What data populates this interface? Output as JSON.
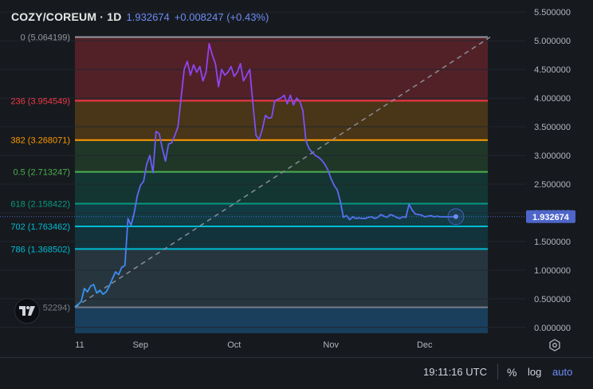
{
  "header": {
    "symbol": "COZY/COREUM · 1D",
    "last_price": "1.932674",
    "change": "+0.008247 (+0.43%)"
  },
  "footer": {
    "clock": "19:11:16 UTC",
    "percent_label": "%",
    "log_label": "log",
    "auto_label": "auto"
  },
  "colors": {
    "accent": "#6f8cf7",
    "background": "#161a1e"
  },
  "chart_data": {
    "type": "line",
    "ylim": [
      -0.1,
      5.6
    ],
    "y_ticks": [
      "5.500000",
      "5.000000",
      "4.500000",
      "4.000000",
      "3.500000",
      "3.000000",
      "2.500000",
      "2.000000",
      "1.500000",
      "1.000000",
      "0.500000",
      "0.000000"
    ],
    "y_tick_values": [
      5.5,
      5.0,
      4.5,
      4.0,
      3.5,
      3.0,
      2.5,
      2.0,
      1.5,
      1.0,
      0.5,
      0.0
    ],
    "x_ticks": [
      {
        "label": "11",
        "t": 0
      },
      {
        "label": "Sep",
        "t": 21
      },
      {
        "label": "Oct",
        "t": 51
      },
      {
        "label": "Nov",
        "t": 82
      },
      {
        "label": "Dec",
        "t": 112
      }
    ],
    "current_price_label": "1.932674",
    "current_price": 1.932674,
    "fib_levels": [
      {
        "label": "0 (5.064199)",
        "value": 5.064199,
        "color": "#9598a1"
      },
      {
        "label": "236 (3.954549)",
        "value": 3.954549,
        "color": "#f23645"
      },
      {
        "label": "382 (3.268071)",
        "value": 3.268071,
        "color": "#ff9800"
      },
      {
        "label": "0.5 (2.713247)",
        "value": 2.713247,
        "color": "#4caf50"
      },
      {
        "label": "618 (2.158422)",
        "value": 2.158422,
        "color": "#089981"
      },
      {
        "label": "702 (1.763462)",
        "value": 1.763462,
        "color": "#00bcd4"
      },
      {
        "label": "786 (1.368502)",
        "value": 1.368502,
        "color": "#00bcd4"
      },
      {
        "label": "52294)",
        "value": 0.352294,
        "color": "#787b86"
      }
    ],
    "fib_zones": [
      {
        "from": 5.064199,
        "to": 3.954549,
        "color": "rgba(242,54,69,0.28)"
      },
      {
        "from": 3.954549,
        "to": 3.268071,
        "color": "rgba(255,152,0,0.22)"
      },
      {
        "from": 3.268071,
        "to": 2.713247,
        "color": "rgba(76,175,80,0.20)"
      },
      {
        "from": 2.713247,
        "to": 2.158422,
        "color": "rgba(8,153,129,0.22)"
      },
      {
        "from": 2.158422,
        "to": 1.763462,
        "color": "rgba(0,188,212,0.20)"
      },
      {
        "from": 1.763462,
        "to": 1.368502,
        "color": "rgba(0,188,212,0.16)"
      },
      {
        "from": 1.368502,
        "to": 0.352294,
        "color": "rgba(90,140,160,0.25)"
      },
      {
        "from": 0.352294,
        "to": -0.1,
        "color": "rgba(33,150,243,0.30)"
      }
    ],
    "trend_line": {
      "t0": 0,
      "v0": 0.352294,
      "t1": 133,
      "v1": 5.064199
    },
    "series": [
      {
        "t": [
          0,
          1,
          2,
          3,
          4,
          5,
          6,
          7,
          8,
          9,
          10,
          11,
          12,
          13,
          14,
          15,
          16,
          17,
          18,
          19,
          20,
          21,
          22,
          23,
          24,
          25,
          26,
          27,
          28,
          29,
          30,
          31,
          32,
          33,
          34,
          35,
          36,
          37,
          38,
          39,
          40,
          41,
          42,
          43,
          44,
          45,
          46,
          47,
          48,
          49,
          50,
          51,
          52,
          53,
          54,
          55,
          56,
          57,
          58,
          59,
          60,
          61,
          62,
          63,
          64,
          65,
          66,
          67,
          68,
          69,
          70,
          71,
          72,
          73,
          74,
          75,
          76,
          77,
          78,
          79,
          80,
          81,
          82,
          83,
          84,
          85,
          86,
          87,
          88,
          89,
          90,
          91,
          92,
          93,
          94,
          95,
          96,
          97,
          98,
          99,
          100,
          101,
          102,
          103,
          104,
          105,
          106,
          107,
          108,
          109,
          110,
          111,
          112,
          113,
          114,
          115,
          116,
          117,
          118,
          119,
          120,
          121,
          122
        ],
        "values": [
          0.36,
          0.4,
          0.45,
          0.68,
          0.62,
          0.72,
          0.75,
          0.6,
          0.65,
          0.58,
          0.62,
          0.72,
          0.85,
          0.97,
          0.92,
          1.05,
          1.08,
          1.9,
          1.78,
          2.0,
          2.3,
          2.48,
          2.55,
          2.85,
          3.0,
          2.7,
          3.42,
          3.38,
          3.12,
          2.9,
          3.2,
          3.22,
          3.35,
          3.5,
          4.0,
          4.5,
          4.64,
          4.4,
          4.58,
          4.45,
          4.55,
          4.3,
          4.45,
          4.95,
          4.75,
          4.6,
          4.2,
          4.5,
          4.4,
          4.45,
          4.55,
          4.38,
          4.45,
          4.6,
          4.3,
          4.4,
          4.5,
          3.9,
          3.35,
          3.28,
          3.45,
          3.7,
          3.65,
          3.66,
          3.95,
          3.98,
          4.0,
          4.05,
          3.9,
          4.05,
          3.88,
          4.0,
          3.95,
          3.78,
          3.25,
          3.12,
          3.05,
          3.0,
          2.97,
          2.92,
          2.85,
          2.75,
          2.6,
          2.48,
          2.4,
          2.2,
          1.92,
          1.95,
          1.88,
          1.93,
          1.9,
          1.91,
          1.9,
          1.9,
          1.92,
          1.93,
          1.9,
          1.92,
          1.97,
          1.94,
          1.92,
          1.97,
          1.95,
          1.92,
          1.9,
          1.93,
          1.92,
          2.15,
          2.05,
          1.98,
          1.97,
          1.96,
          1.93,
          1.94,
          1.95,
          1.93,
          1.94,
          1.93,
          1.93,
          1.93,
          1.93,
          1.93,
          1.93
        ]
      }
    ]
  }
}
